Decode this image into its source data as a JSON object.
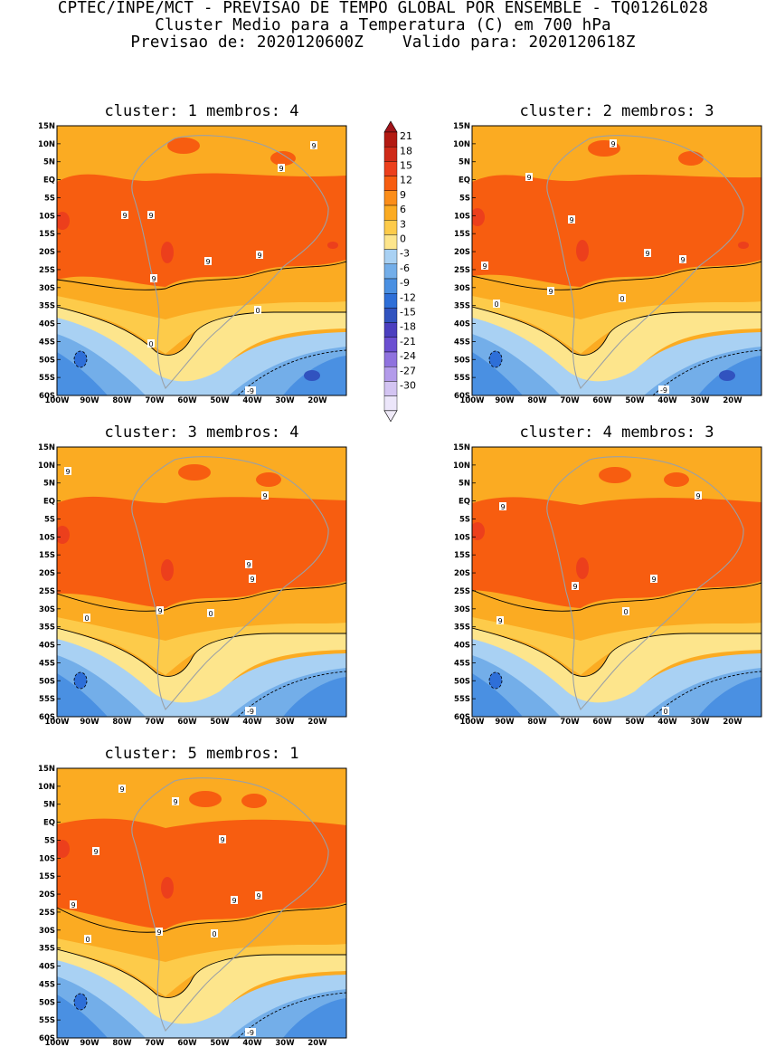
{
  "header": {
    "line1": "CPTEC/INPE/MCT - PREVISAO DE TEMPO GLOBAL POR ENSEMBLE - TQ0126L028",
    "line2": "Cluster Medio para a Temperatura (C) em 700 hPa",
    "line3": "Previsao de: 2020120600Z    Valido para: 2020120618Z"
  },
  "lat_ticks": [
    "15N",
    "10N",
    "5N",
    "EQ",
    "5S",
    "10S",
    "15S",
    "20S",
    "25S",
    "30S",
    "35S",
    "40S",
    "45S",
    "50S",
    "55S",
    "60S"
  ],
  "lon_ticks": [
    "100W",
    "90W",
    "80W",
    "70W",
    "60W",
    "50W",
    "40W",
    "30W",
    "20W"
  ],
  "colorbar": {
    "labels": [
      "21",
      "18",
      "15",
      "12",
      "9",
      "6",
      "3",
      "0",
      "-3",
      "-6",
      "-9",
      "-12",
      "-15",
      "-18",
      "-21",
      "-24",
      "-27",
      "-30"
    ],
    "colors": [
      "#b31a12",
      "#cf2a18",
      "#ec3f1c",
      "#f75d10",
      "#fb8d19",
      "#fbab22",
      "#fdcb4a",
      "#fde58c",
      "#a9d1f3",
      "#73aee9",
      "#4a90e2",
      "#2e6fd8",
      "#3153bf",
      "#4b3fbf",
      "#6b4fd1",
      "#8f72de",
      "#b39bea",
      "#d3c4f2",
      "#ece6fa"
    ],
    "top_arrow_color": "#a0141a",
    "bottom_arrow_color": "#efeaf8"
  },
  "panels": [
    {
      "title": "cluster: 1   membros: 4",
      "labels": [
        "9",
        "9",
        "9",
        "9",
        "9",
        "9",
        "9",
        "0",
        "0",
        "-9"
      ]
    },
    {
      "title": "cluster: 2   membros: 3",
      "labels": [
        "9",
        "9",
        "9",
        "9",
        "9",
        "9",
        "9",
        "0",
        "0",
        "-9"
      ]
    },
    {
      "title": "cluster: 3   membros: 4",
      "labels": [
        "9",
        "9",
        "9",
        "9",
        "9",
        "0",
        "0",
        "-9"
      ]
    },
    {
      "title": "cluster: 4   membros: 3",
      "labels": [
        "9",
        "9",
        "9",
        "9",
        "9",
        "0",
        "0",
        "-9"
      ]
    },
    {
      "title": "cluster: 5   membros: 1",
      "labels": [
        "9",
        "9",
        "9",
        "9",
        "9",
        "9",
        "9",
        "9",
        "0",
        "0",
        "-9"
      ]
    }
  ]
}
